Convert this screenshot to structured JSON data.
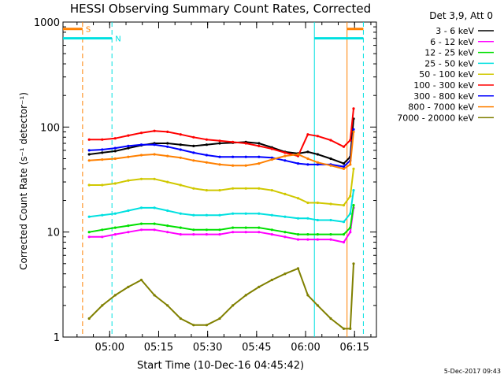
{
  "chart_data": {
    "type": "line",
    "title": "HESSI Observing Summary Count Rates, Corrected",
    "xlabel": "Start Time (10-Dec-16 04:45:42)",
    "ylabel": "Corrected Count Rate (s⁻¹ detector⁻¹)",
    "yscale": "log",
    "ylim": [
      1,
      1000
    ],
    "xlim_minutes_since_start": [
      0,
      96
    ],
    "x_ticks": [
      {
        "minute": 14.3,
        "label": "05:00"
      },
      {
        "minute": 29.3,
        "label": "05:15"
      },
      {
        "minute": 44.3,
        "label": "05:30"
      },
      {
        "minute": 59.3,
        "label": "05:45"
      },
      {
        "minute": 74.3,
        "label": "06:00"
      },
      {
        "minute": 89.3,
        "label": "06:15"
      }
    ],
    "y_ticks": [
      {
        "value": 1,
        "label": "1"
      },
      {
        "value": 10,
        "label": "10"
      },
      {
        "value": 100,
        "label": "100"
      },
      {
        "value": 1000,
        "label": "1000"
      }
    ],
    "legend_title": "Det 3,9, Att 0",
    "legend_position": "right",
    "timestamp": "5-Dec-2017 09:43",
    "x": [
      8,
      12,
      16,
      20,
      24,
      28,
      32,
      36,
      40,
      44,
      48,
      52,
      56,
      60,
      64,
      68,
      72,
      75,
      78,
      82,
      86,
      88,
      89
    ],
    "series": [
      {
        "name": "3 - 6 keV",
        "color": "#000000",
        "values": [
          55,
          57,
          59,
          63,
          67,
          70,
          70,
          68,
          66,
          68,
          70,
          71,
          72,
          70,
          64,
          58,
          56,
          58,
          55,
          50,
          45,
          52,
          120
        ]
      },
      {
        "name": "6 - 12 keV",
        "color": "#ff00ff",
        "values": [
          9,
          9,
          9.5,
          10,
          10.5,
          10.5,
          10,
          9.5,
          9.5,
          9.5,
          9.5,
          10,
          10,
          10,
          9.5,
          9,
          8.5,
          8.5,
          8.5,
          8.5,
          8,
          10,
          17
        ]
      },
      {
        "name": "12 - 25 keV",
        "color": "#00e000",
        "values": [
          10,
          10.5,
          11,
          11.5,
          12,
          12,
          11.5,
          11,
          10.5,
          10.5,
          10.5,
          11,
          11,
          11,
          10.5,
          10,
          9.5,
          9.5,
          9.5,
          9.5,
          9.5,
          11,
          18
        ]
      },
      {
        "name": "25 - 50 keV",
        "color": "#00e0e0",
        "values": [
          14,
          14.5,
          15,
          16,
          17,
          17,
          16,
          15,
          14.5,
          14.5,
          14.5,
          15,
          15,
          15,
          14.5,
          14,
          13.5,
          13.5,
          13,
          13,
          12.5,
          15,
          25
        ]
      },
      {
        "name": "50 - 100 keV",
        "color": "#d0c800",
        "values": [
          28,
          28,
          29,
          31,
          32,
          32,
          30,
          28,
          26,
          25,
          25,
          26,
          26,
          26,
          25,
          23,
          21,
          19,
          19,
          18.5,
          18,
          22,
          40
        ]
      },
      {
        "name": "100 - 300 keV",
        "color": "#ff0000",
        "values": [
          76,
          76,
          78,
          83,
          88,
          92,
          90,
          85,
          80,
          76,
          74,
          72,
          70,
          66,
          62,
          57,
          53,
          85,
          82,
          75,
          65,
          75,
          150
        ]
      },
      {
        "name": "300 - 800 keV",
        "color": "#0000ff",
        "values": [
          60,
          61,
          63,
          66,
          68,
          68,
          65,
          61,
          57,
          54,
          52,
          52,
          52,
          52,
          51,
          48,
          45,
          44,
          44,
          44,
          42,
          48,
          95
        ]
      },
      {
        "name": "800 - 7000 keV",
        "color": "#ff8000",
        "values": [
          48,
          49,
          50,
          52,
          54,
          55,
          53,
          51,
          48,
          46,
          44,
          43,
          43,
          45,
          49,
          53,
          55,
          50,
          46,
          43,
          40,
          44,
          90
        ]
      },
      {
        "name": "7000 - 20000 keV",
        "color": "#808000",
        "values": [
          1.5,
          2,
          2.5,
          3,
          3.5,
          2.5,
          2,
          1.5,
          1.3,
          1.3,
          1.5,
          2,
          2.5,
          3,
          3.5,
          4,
          4.5,
          2.5,
          2,
          1.5,
          1.2,
          1.2,
          5
        ]
      }
    ],
    "vertical_markers": [
      {
        "minute": 6,
        "color": "#ff8000",
        "style": "dashed"
      },
      {
        "minute": 15,
        "color": "#00e0e0",
        "style": "dashed"
      },
      {
        "minute": 77,
        "color": "#00e0e0",
        "style": "solid"
      },
      {
        "minute": 87,
        "color": "#ff8000",
        "style": "solid"
      },
      {
        "minute": 92,
        "color": "#00e0e0",
        "style": "dashed"
      }
    ],
    "flag_bars": [
      {
        "label": "S",
        "color": "#ff8000",
        "start_minute": 0,
        "end_minute": 6,
        "level": 860
      },
      {
        "label": "",
        "color": "#ff8000",
        "start_minute": 87,
        "end_minute": 92,
        "level": 860
      },
      {
        "label": "N",
        "color": "#00e0e0",
        "start_minute": 0,
        "end_minute": 15,
        "level": 700
      },
      {
        "label": "",
        "color": "#00e0e0",
        "start_minute": 77,
        "end_minute": 92,
        "level": 700
      }
    ]
  }
}
